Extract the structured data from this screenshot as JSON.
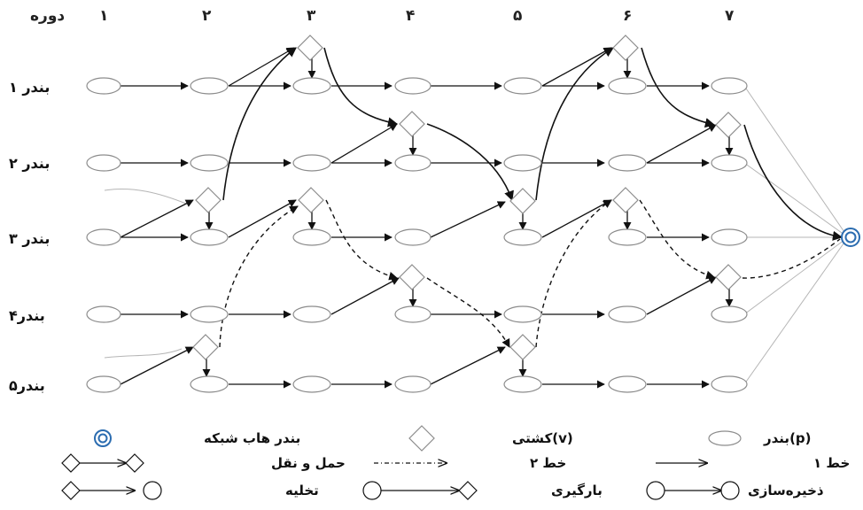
{
  "header": {
    "period_title": "دوره",
    "periods": [
      "۱",
      "۲",
      "۳",
      "۴",
      "۵",
      "۶",
      "۷"
    ]
  },
  "ports": [
    "بندر ۱",
    "بندر ۲",
    "بندر ۳",
    "بندر۴",
    "بندر۵"
  ],
  "legend": {
    "port": "بندر(p)",
    "ship": "کشتی(v)",
    "hub": "بندر هاب شبکه",
    "line1": "خط ۱",
    "line2": "خط ۲",
    "transport": "حمل و نقل",
    "storage": "ذخیره‌سازی",
    "loading": "بارگیری",
    "unloading": "تخلیه"
  },
  "colors": {
    "node_stroke": "#8c8c8c",
    "arrow": "#111111",
    "grey_line": "#b5b5b5",
    "hub": "#2b6cb0"
  }
}
